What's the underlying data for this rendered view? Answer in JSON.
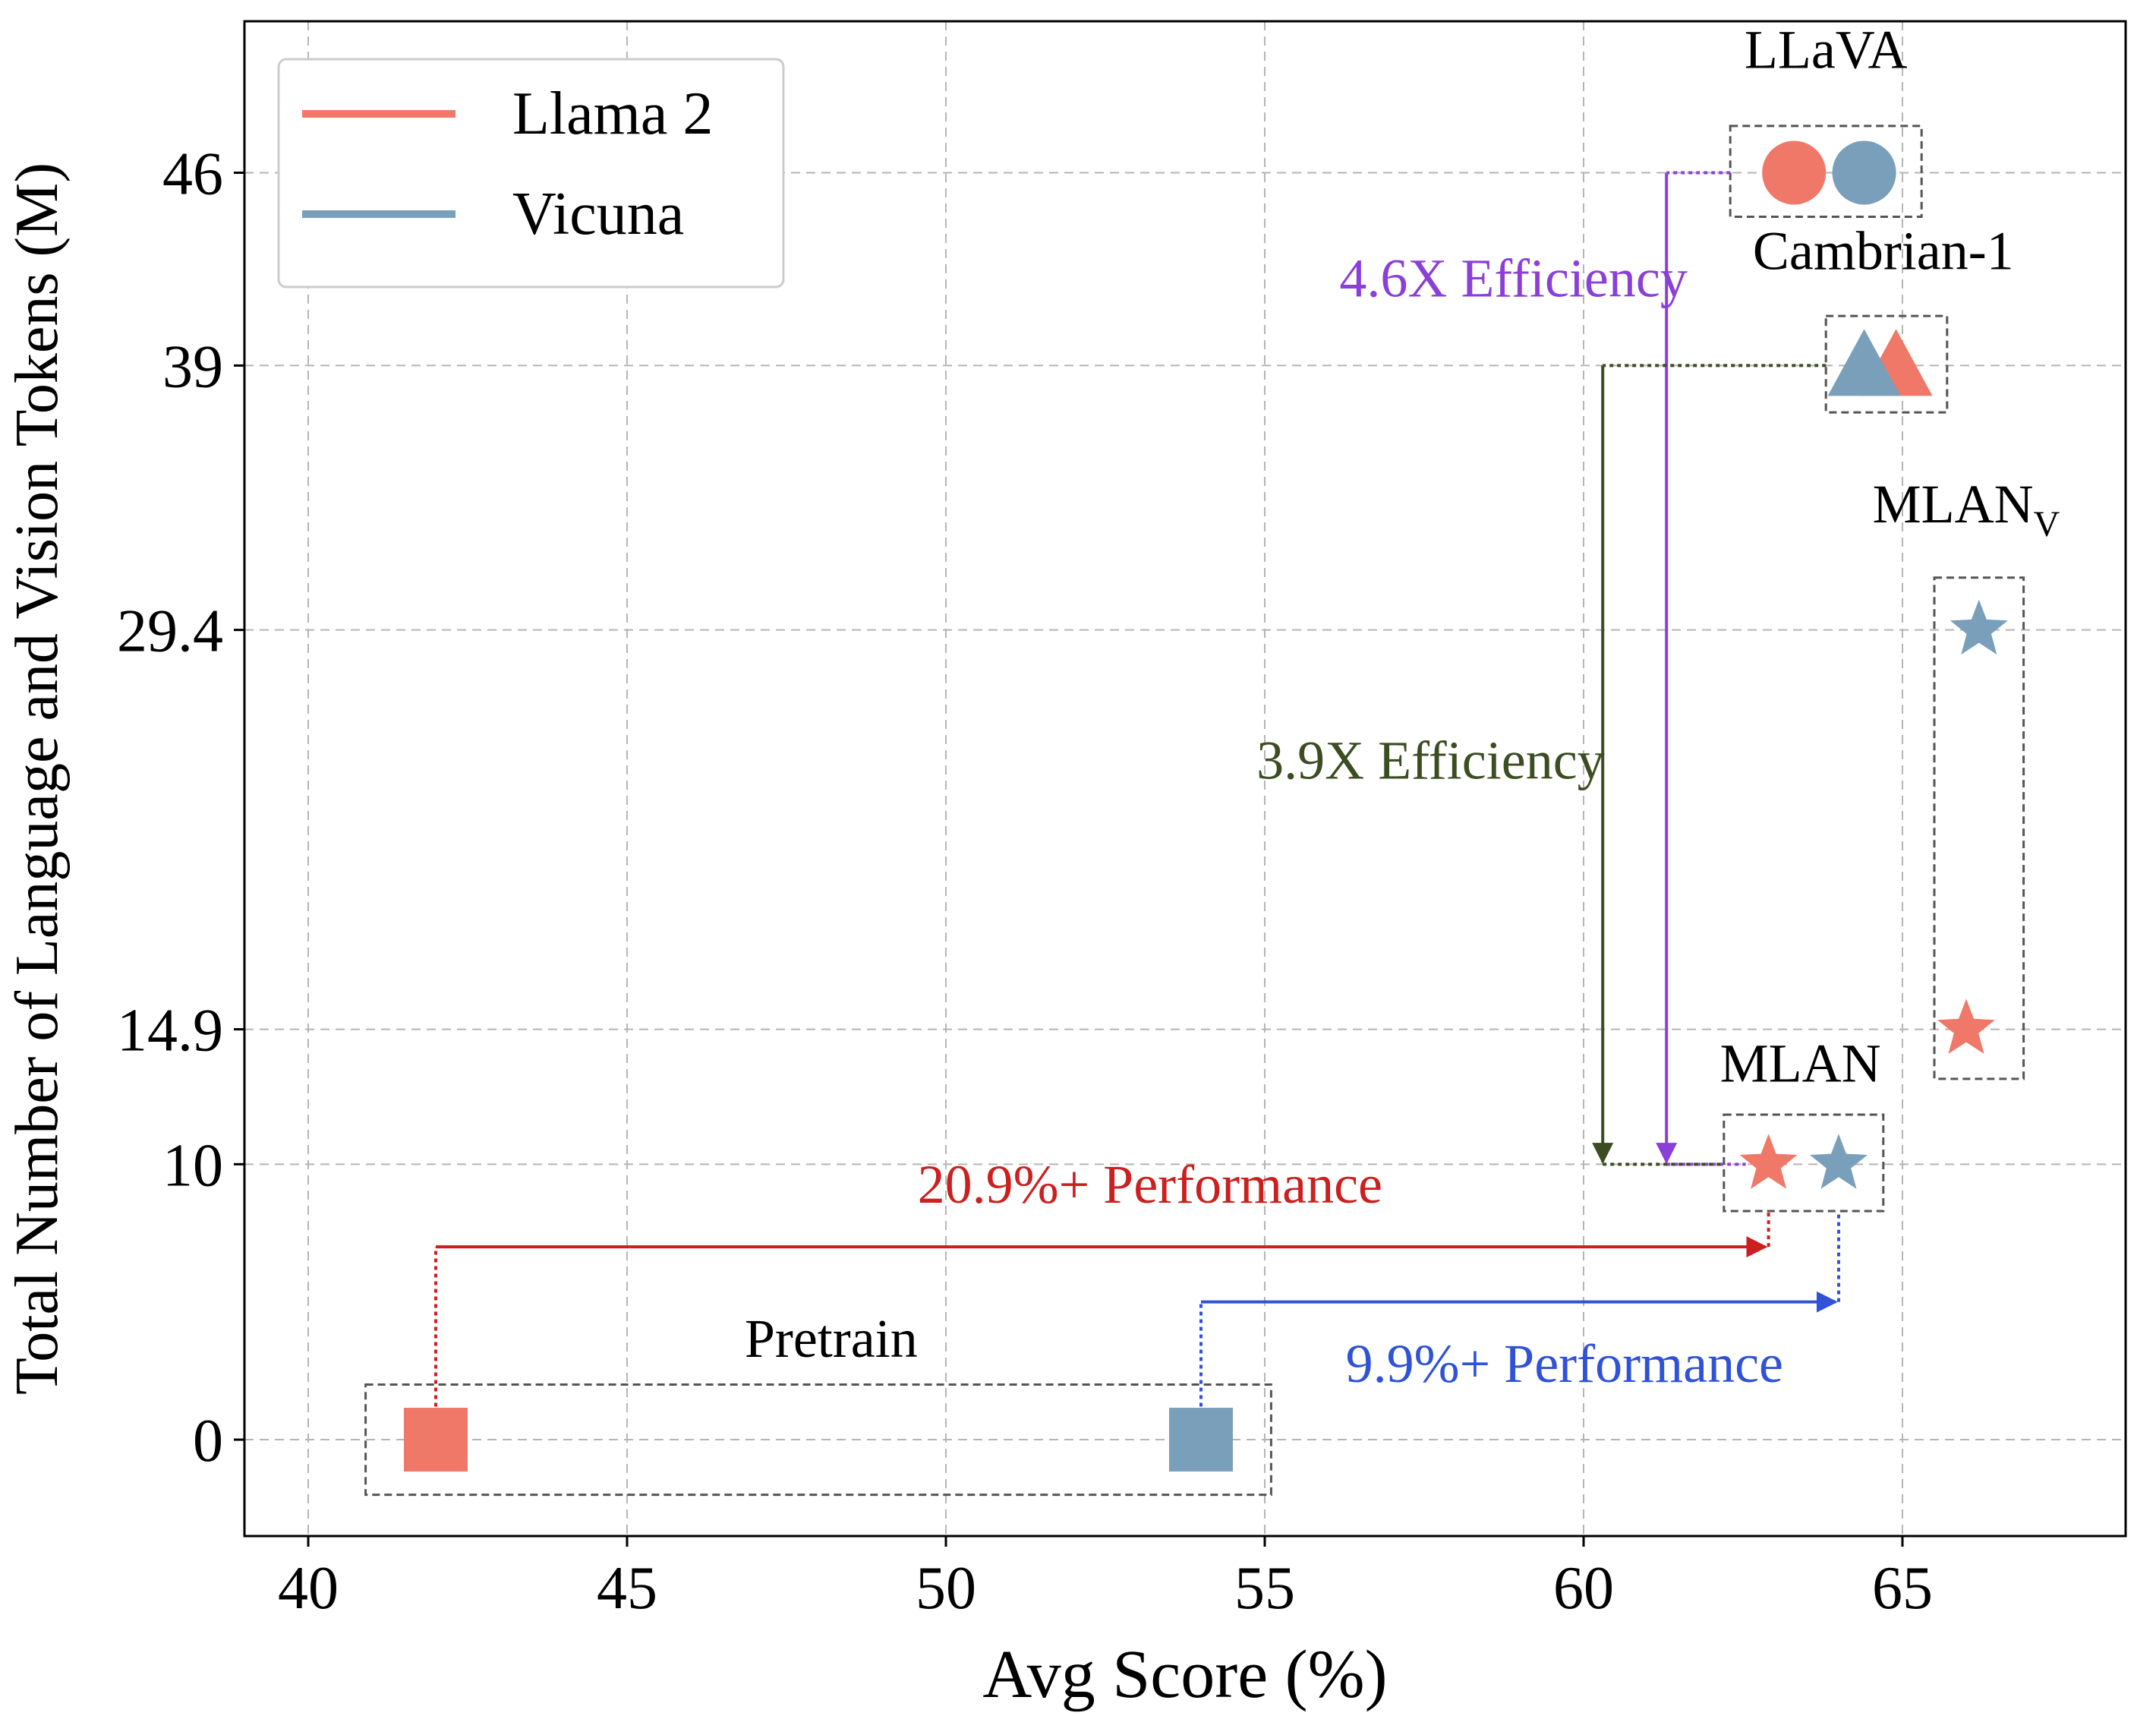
{
  "chart_data": {
    "type": "scatter",
    "xlabel": "Avg Score (%)",
    "ylabel": "Total Number of Language and Vision Tokens (M)",
    "xlim": [
      39,
      68.5
    ],
    "ylim": [
      -3.5,
      51.5
    ],
    "xticks": [
      40,
      45,
      50,
      55,
      60,
      65
    ],
    "yticks": [
      0,
      10,
      14.9,
      29.4,
      39,
      46
    ],
    "xtick_labels": [
      "40",
      "45",
      "50",
      "55",
      "60",
      "65"
    ],
    "ytick_labels": [
      "0",
      "10",
      "14.9",
      "29.4",
      "39",
      "46"
    ],
    "grid": true,
    "legend": {
      "position": "top-left",
      "entries": [
        {
          "name": "Llama 2",
          "color": "#f07868"
        },
        {
          "name": "Vicuna",
          "color": "#7a9fba"
        }
      ]
    },
    "colors": {
      "llama": "#f07868",
      "vicuna": "#7a9fba"
    },
    "points": [
      {
        "group": "Pretrain",
        "series": "Llama 2",
        "marker": "square",
        "x": 42.0,
        "y": 0
      },
      {
        "group": "Pretrain",
        "series": "Vicuna",
        "marker": "square",
        "x": 54.0,
        "y": 0
      },
      {
        "group": "MLAN",
        "series": "Llama 2",
        "marker": "star",
        "x": 62.9,
        "y": 10
      },
      {
        "group": "MLAN",
        "series": "Vicuna",
        "marker": "star",
        "x": 64.0,
        "y": 10
      },
      {
        "group": "MLAN_V",
        "series": "Vicuna",
        "marker": "star",
        "x": 66.2,
        "y": 29.4
      },
      {
        "group": "MLAN_V",
        "series": "Llama 2",
        "marker": "star",
        "x": 66.0,
        "y": 14.9
      },
      {
        "group": "Cambrian-1",
        "series": "Llama 2",
        "marker": "triangle",
        "x": 64.9,
        "y": 39
      },
      {
        "group": "Cambrian-1",
        "series": "Vicuna",
        "marker": "triangle",
        "x": 64.4,
        "y": 39
      },
      {
        "group": "LLaVA",
        "series": "Llama 2",
        "marker": "circle",
        "x": 63.3,
        "y": 46
      },
      {
        "group": "LLaVA",
        "series": "Vicuna",
        "marker": "circle",
        "x": 64.4,
        "y": 46
      }
    ],
    "group_boxes": [
      {
        "name": "Pretrain",
        "x0": 40.9,
        "x1": 55.1,
        "y0": -2.0,
        "y1": 2.0
      },
      {
        "name": "MLAN",
        "x0": 62.2,
        "x1": 64.7,
        "y0": 8.3,
        "y1": 11.8
      },
      {
        "name": "MLAN_V",
        "x0": 65.5,
        "x1": 66.9,
        "y0": 13.1,
        "y1": 31.3
      },
      {
        "name": "Cambrian-1",
        "x0": 63.8,
        "x1": 65.7,
        "y0": 37.3,
        "y1": 40.8
      },
      {
        "name": "LLaVA",
        "x0": 62.3,
        "x1": 65.3,
        "y0": 44.4,
        "y1": 47.7
      }
    ],
    "group_labels": {
      "pretrain": "Pretrain",
      "mlan": "MLAN",
      "mlan_v": "MLAN",
      "mlan_v_sub": "V",
      "cambrian": "Cambrian-1",
      "llava": "LLaVA"
    },
    "annotations": [
      {
        "id": "llava-eff",
        "text": "4.6X Efficiency",
        "color": "#8b3fd9",
        "from": [
          62.3,
          46
        ],
        "to": [
          62.9,
          10
        ],
        "elbow_x": 61.3
      },
      {
        "id": "cambrian-eff",
        "text": "3.9X Efficiency",
        "color": "#3b4d21",
        "from": [
          63.8,
          39
        ],
        "to": [
          62.2,
          10
        ],
        "elbow_x": 60.3
      },
      {
        "id": "llama-perf",
        "text": "20.9%+ Performance",
        "color": "#cc1f1f",
        "from_x": 42.0,
        "to_x": 62.9,
        "level": 7.0
      },
      {
        "id": "vicuna-perf",
        "text": "9.9%+ Performance",
        "color": "#2f52d6",
        "from_x": 54.0,
        "to_x": 64.0,
        "level": 5.0
      }
    ]
  }
}
